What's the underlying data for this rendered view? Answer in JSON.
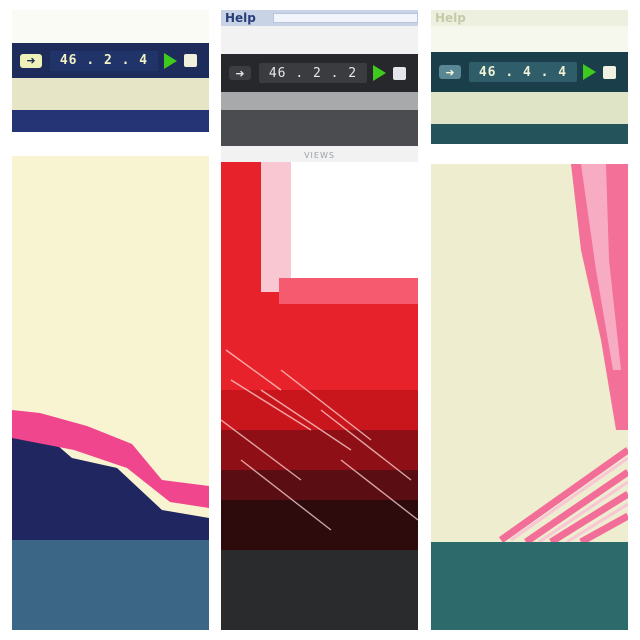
{
  "panels": [
    {
      "toolbar": {
        "arrow_icon": "right-arrow-icon",
        "counter": "46 . 2 . 4",
        "play_icon": "play-icon",
        "stop_icon": "stop-icon"
      },
      "colors": {
        "toolbar": "#1d2c5a",
        "canvas": "#f8f4d1",
        "footer": "#3b6685",
        "ink_primary": "#f0468e",
        "ink_shadow": "#1f2660"
      }
    },
    {
      "menu": {
        "help": "Help"
      },
      "toolbar": {
        "arrow_icon": "right-arrow-icon",
        "counter": "46 . 2 . 2",
        "play_icon": "play-icon",
        "stop_icon": "stop-icon"
      },
      "views_label": "VIEWS",
      "colors": {
        "toolbar": "#26282b",
        "canvas": "#e8222a",
        "footer": "#2a2b2c",
        "ink_primary": "#f65a6e",
        "ink_shadow": "#5a0d13"
      }
    },
    {
      "menu": {
        "help": "Help"
      },
      "toolbar": {
        "arrow_icon": "right-arrow-icon",
        "counter": "46 . 4 . 4",
        "play_icon": "play-icon",
        "stop_icon": "stop-icon"
      },
      "colors": {
        "toolbar": "#1b3f4a",
        "canvas": "#eeedcf",
        "footer": "#2c6a6c",
        "ink_primary": "#f3598f",
        "ink_shadow": "#e3a6b6"
      }
    }
  ]
}
